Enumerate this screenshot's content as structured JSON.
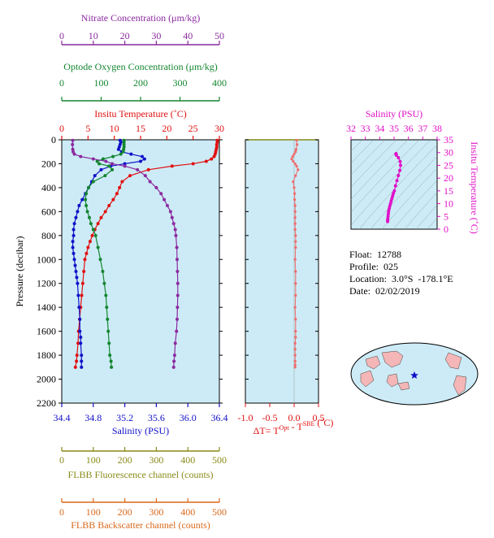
{
  "info": {
    "float": "Float:  12788",
    "profile": "Profile:  025",
    "location": "Location:  3.0°S  -178.1°E",
    "date": "Date:  02/02/2019"
  },
  "colors": {
    "nitrate": "#8b2aa0",
    "oxygen": "#13862f",
    "temperature": "#e11010",
    "salinity": "#1010c8",
    "fluorescence": "#8a8a1a",
    "backscatter": "#d9681a",
    "delta": "#f06a6a",
    "ts": "#e010c8",
    "panel_bg": "#cdebf6"
  },
  "chart_data": [
    {
      "type": "line",
      "panel": "main-profile",
      "ylabel": "Pressure (decibar)",
      "ylim": [
        2200,
        0
      ],
      "yticks": [
        0,
        200,
        400,
        600,
        800,
        1000,
        1200,
        1400,
        1600,
        1800,
        2000,
        2200
      ],
      "axes": {
        "nitrate": {
          "label": "Nitrate Concentration (μm/kg)",
          "range": [
            0,
            50
          ],
          "ticks": [
            0,
            10,
            20,
            30,
            40,
            50
          ],
          "tick_labels": [
            "0",
            "10",
            "20",
            "30",
            "40",
            "50"
          ]
        },
        "oxygen": {
          "label": "Optode Oxygen Concentration (μm/kg)",
          "range": [
            0,
            400
          ],
          "ticks": [
            0,
            100,
            200,
            300,
            400
          ],
          "tick_labels": [
            "0",
            "100",
            "200",
            "300",
            "400"
          ]
        },
        "temperature": {
          "label": "Insitu Temperature (˚C)",
          "range": [
            0,
            30
          ],
          "ticks": [
            0,
            5,
            10,
            15,
            20,
            25,
            30
          ],
          "tick_labels": [
            "0",
            "5",
            "10",
            "15",
            "20",
            "25",
            "30"
          ]
        },
        "salinity": {
          "label": "Salinity (PSU)",
          "range": [
            34.4,
            36.4
          ],
          "ticks": [
            34.4,
            34.8,
            35.2,
            35.6,
            36.0,
            36.4
          ],
          "tick_labels": [
            "34.4",
            "34.8",
            "35.2",
            "35.6",
            "36.0",
            "36.4"
          ]
        },
        "fluorescence": {
          "label": "FLBB Fluorescence channel (counts)",
          "range": [
            0,
            500
          ],
          "ticks": [
            0,
            100,
            200,
            300,
            400,
            500
          ],
          "tick_labels": [
            "0",
            "100",
            "200",
            "300",
            "400",
            "500"
          ]
        },
        "backscatter": {
          "label": "FLBB Backscatter channel (counts)",
          "range": [
            0,
            500
          ],
          "ticks": [
            0,
            100,
            200,
            300,
            400,
            500
          ],
          "tick_labels": [
            "0",
            "100",
            "200",
            "300",
            "400",
            "500"
          ]
        }
      },
      "series": [
        {
          "axis": "temperature",
          "x": [
            29.6,
            29.6,
            29.5,
            29.5,
            29.4,
            29.3,
            29.2,
            29.0,
            28.5,
            27.5,
            25.0,
            21.0,
            16.5,
            13.0,
            11.5,
            11.0,
            10.5,
            9.8,
            9.0,
            8.3,
            7.5,
            6.9,
            6.3,
            5.8,
            5.4,
            5.0,
            4.7,
            4.4,
            4.2,
            4.0,
            3.8,
            3.6,
            3.4,
            3.2,
            3.1,
            2.9,
            2.8,
            2.6
          ],
          "y": [
            5,
            20,
            40,
            60,
            80,
            100,
            120,
            140,
            160,
            180,
            200,
            220,
            250,
            300,
            350,
            400,
            450,
            500,
            550,
            600,
            650,
            700,
            750,
            800,
            850,
            900,
            950,
            1000,
            1100,
            1200,
            1300,
            1400,
            1500,
            1600,
            1700,
            1800,
            1850,
            1900
          ]
        },
        {
          "axis": "salinity",
          "x": [
            35.14,
            35.15,
            35.14,
            35.13,
            35.12,
            35.16,
            35.28,
            35.42,
            35.45,
            35.4,
            35.2,
            35.02,
            34.9,
            34.82,
            34.78,
            34.74,
            34.7,
            34.66,
            34.62,
            34.6,
            34.58,
            34.56,
            34.55,
            34.55,
            34.54,
            34.54,
            34.55,
            34.56,
            34.57,
            34.58,
            34.59,
            34.6,
            34.61,
            34.62,
            34.63,
            34.63,
            34.64,
            34.64,
            34.65,
            34.65,
            34.65
          ],
          "y": [
            5,
            20,
            40,
            60,
            80,
            100,
            120,
            140,
            160,
            180,
            200,
            220,
            250,
            300,
            350,
            400,
            450,
            500,
            550,
            600,
            650,
            700,
            750,
            800,
            850,
            900,
            950,
            1000,
            1050,
            1100,
            1150,
            1200,
            1300,
            1400,
            1500,
            1600,
            1650,
            1700,
            1800,
            1850,
            1900
          ]
        },
        {
          "axis": "oxygen",
          "x": [
            158,
            158,
            158,
            158,
            157,
            156,
            150,
            130,
            105,
            90,
            95,
            120,
            128,
            110,
            80,
            68,
            62,
            60,
            62,
            65,
            70,
            74,
            80,
            86,
            92,
            98,
            104,
            108,
            112,
            114,
            116,
            118,
            120,
            122,
            125,
            126
          ],
          "y": [
            5,
            20,
            40,
            60,
            80,
            100,
            120,
            140,
            160,
            180,
            200,
            220,
            250,
            300,
            350,
            400,
            450,
            500,
            550,
            600,
            650,
            700,
            750,
            800,
            900,
            1000,
            1100,
            1200,
            1300,
            1400,
            1500,
            1600,
            1700,
            1800,
            1850,
            1900
          ]
        },
        {
          "axis": "nitrate",
          "x": [
            3.5,
            3.4,
            3.5,
            3.6,
            4.0,
            6.0,
            10.0,
            14.0,
            16.0,
            20.0,
            24.0,
            26.5,
            28.0,
            30.0,
            31.5,
            32.5,
            33.5,
            34.5,
            35.0,
            35.5,
            36.0,
            36.2,
            36.5,
            36.6,
            36.7,
            36.8,
            36.8,
            36.7,
            36.6,
            36.4,
            36.0,
            35.8,
            35.6,
            35.5
          ],
          "y": [
            5,
            40,
            80,
            100,
            120,
            140,
            160,
            180,
            200,
            220,
            250,
            300,
            350,
            400,
            450,
            500,
            550,
            600,
            650,
            700,
            750,
            800,
            900,
            1000,
            1100,
            1200,
            1300,
            1400,
            1500,
            1600,
            1700,
            1800,
            1850,
            1900
          ]
        }
      ]
    },
    {
      "type": "scatter",
      "panel": "delta-temperature",
      "xlabel": "ΔT= T",
      "xlabel_sup1": "Opt",
      "xlabel_mid": " - T",
      "xlabel_sup2": "SBE",
      "xlabel_end": " (˚C)",
      "xlim": [
        -1.0,
        0.5
      ],
      "ylim": [
        2200,
        0
      ],
      "xticks": [
        -1.0,
        -0.5,
        0.0,
        0.5
      ],
      "xtick_labels": [
        "-1.0",
        "-0.5",
        "0.0",
        "0.5"
      ],
      "x": [
        0.05,
        0.06,
        0.04,
        0.03,
        0.0,
        -0.03,
        -0.05,
        -0.02,
        0.02,
        0.05,
        0.08,
        0.03,
        -0.02,
        0.0,
        0.01,
        0.01,
        0.02,
        0.02,
        0.02,
        0.02,
        0.02,
        0.03,
        0.03,
        0.03,
        0.02,
        0.03,
        0.03,
        0.03,
        0.02,
        0.03,
        0.03,
        0.03,
        0.02,
        0.02,
        0.02,
        0.02,
        0.02,
        0.02
      ],
      "y": [
        5,
        40,
        80,
        100,
        120,
        140,
        160,
        180,
        200,
        220,
        250,
        300,
        350,
        400,
        450,
        500,
        550,
        600,
        650,
        700,
        750,
        800,
        850,
        900,
        1000,
        1100,
        1200,
        1300,
        1400,
        1500,
        1600,
        1650,
        1700,
        1750,
        1800,
        1850,
        1880,
        1900
      ]
    },
    {
      "type": "scatter",
      "panel": "ts-diagram",
      "xlabel": "Salinity (PSU)",
      "ylabel": "Insitu Temperature (˚C)",
      "xlim": [
        32,
        38
      ],
      "ylim": [
        0,
        35
      ],
      "xticks": [
        32,
        33,
        34,
        35,
        36,
        37,
        38
      ],
      "xtick_labels": [
        "32",
        "33",
        "34",
        "35",
        "36",
        "37",
        "38"
      ],
      "yticks": [
        0,
        5,
        10,
        15,
        20,
        25,
        30,
        35
      ],
      "ytick_labels": [
        "0",
        "5",
        "10",
        "15",
        "20",
        "25",
        "30",
        "35"
      ],
      "x": [
        35.14,
        35.13,
        35.16,
        35.3,
        35.42,
        35.45,
        35.4,
        35.3,
        35.2,
        35.1,
        35.02,
        34.95,
        34.9,
        34.85,
        34.8,
        34.75,
        34.7,
        34.66,
        34.62,
        34.6,
        34.58,
        34.56,
        34.55,
        34.55
      ],
      "y": [
        29.6,
        29.4,
        29.0,
        28.0,
        26.5,
        25.0,
        23.0,
        21.0,
        19.0,
        17.0,
        15.0,
        14.0,
        13.0,
        12.0,
        11.0,
        10.0,
        9.0,
        8.0,
        7.0,
        6.0,
        5.0,
        4.0,
        3.5,
        3.0
      ]
    }
  ]
}
